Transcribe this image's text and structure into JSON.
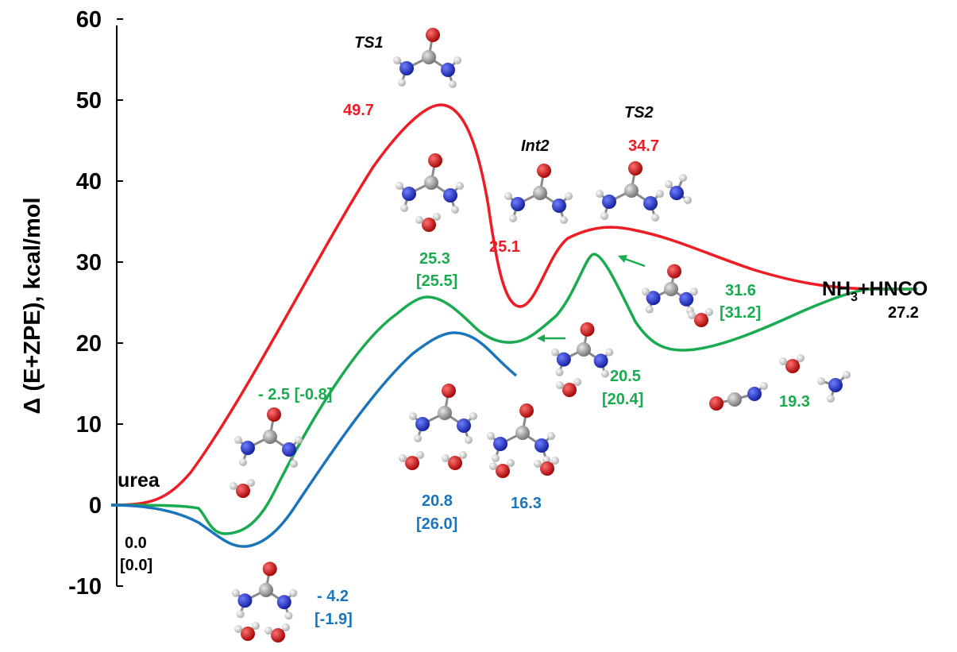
{
  "chart_data": {
    "type": "line",
    "ylabel": "Δ (E+ZPE), kcal/mol",
    "ylim": [
      -10,
      60
    ],
    "yticks": [
      "60",
      "50",
      "40",
      "30",
      "20",
      "10",
      "0",
      "-10"
    ],
    "series": [
      {
        "color": "#ee1c24",
        "points": [
          [
            "urea",
            0.0
          ],
          [
            "TS1",
            49.7
          ],
          [
            "Int2",
            25.1
          ],
          [
            "TS2",
            34.7
          ],
          [
            "NH3+HNCO",
            27.2
          ]
        ]
      },
      {
        "color": "#1aaa4f",
        "points": [
          [
            "urea",
            0.0
          ],
          [
            "complex",
            -2.5
          ],
          [
            "TS1",
            25.3
          ],
          [
            "Int2",
            20.5
          ],
          [
            "TS2",
            31.6
          ],
          [
            "product complex",
            19.3
          ],
          [
            "NH3+HNCO",
            27.2
          ]
        ]
      },
      {
        "color": "#1b75bb",
        "points": [
          [
            "urea",
            0.0
          ],
          [
            "complex",
            -4.2
          ],
          [
            "TS1",
            20.8
          ],
          [
            "end",
            16.3
          ]
        ]
      }
    ],
    "annotations": {
      "urea": "urea",
      "product": "NH",
      "product_sub": "3",
      "product_rest": "+HNCO",
      "ts1": "TS1",
      "int2": "Int2",
      "ts2": "TS2",
      "black_start": "0.0",
      "black_start_b": "[0.0]",
      "black_end": "27.2",
      "red_ts1": "49.7",
      "red_int2": "25.1",
      "red_ts2": "34.7",
      "green_min": "- 2.5 [-0.8]",
      "green_ts1": "25.3",
      "green_ts1_b": "[25.5]",
      "green_int2": "20.5",
      "green_int2_b": "[20.4]",
      "green_ts2": "31.6",
      "green_ts2_b": "[31.2]",
      "green_prod": "19.3",
      "blue_min": "- 4.2",
      "blue_min_b": "[-1.9]",
      "blue_ts1": "20.8",
      "blue_ts1_b": "[26.0]",
      "blue_end": "16.3"
    }
  },
  "colors": {
    "red": "#ee1c24",
    "green": "#1aaa4f",
    "blue": "#1b75bb",
    "carbon": "#8c8c8c",
    "oxygen": "#d40000",
    "nitrogen": "#1f2fc8",
    "hydrogen": "#dcdcdc"
  }
}
